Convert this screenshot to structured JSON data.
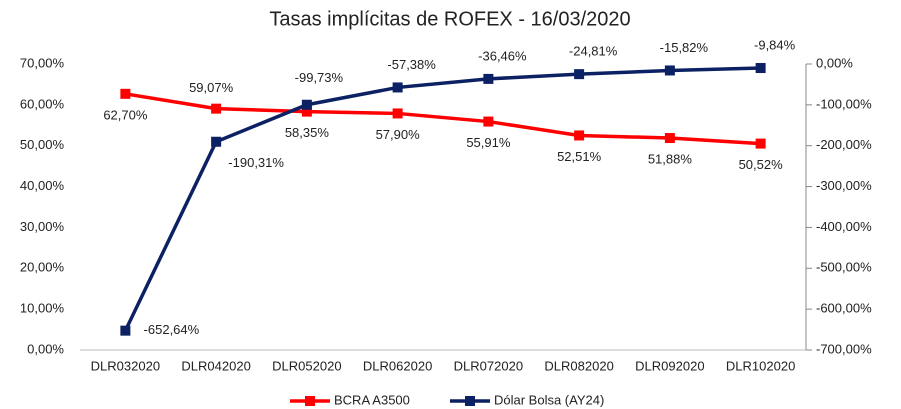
{
  "chart_data": {
    "type": "line",
    "title": "Tasas implícitas de ROFEX - 16/03/2020",
    "categories": [
      "DLR032020",
      "DLR042020",
      "DLR052020",
      "DLR062020",
      "DLR072020",
      "DLR082020",
      "DLR092020",
      "DLR102020"
    ],
    "series": [
      {
        "name": "BCRA A3500",
        "color": "#ff0000",
        "axis": "y",
        "values": [
          62.7,
          59.07,
          58.35,
          57.9,
          55.91,
          52.51,
          51.88,
          50.52
        ],
        "value_labels": [
          "62,70%",
          "59,07%",
          "58,35%",
          "57,90%",
          "55,91%",
          "52,51%",
          "51,88%",
          "50,52%"
        ]
      },
      {
        "name": "Dólar Bolsa (AY24)",
        "color": "#0b2164",
        "axis": "y2",
        "values": [
          -652.64,
          -190.31,
          -99.73,
          -57.38,
          -36.46,
          -24.81,
          -15.82,
          -9.84
        ],
        "value_labels": [
          "-652,64%",
          "-190,31%",
          "-99,73%",
          "-57,38%",
          "-36,46%",
          "-24,81%",
          "-15,82%",
          "-9,84%"
        ]
      }
    ],
    "ylim": [
      0,
      70
    ],
    "yticks": [
      {
        "value": 0,
        "label": "0,00%"
      },
      {
        "value": 10,
        "label": "10,00%"
      },
      {
        "value": 20,
        "label": "20,00%"
      },
      {
        "value": 30,
        "label": "30,00%"
      },
      {
        "value": 40,
        "label": "40,00%"
      },
      {
        "value": 50,
        "label": "50,00%"
      },
      {
        "value": 60,
        "label": "60,00%"
      },
      {
        "value": 70,
        "label": "70,00%"
      }
    ],
    "y2lim": [
      -700,
      0
    ],
    "y2ticks": [
      {
        "value": -700,
        "label": "-700,00%"
      },
      {
        "value": -600,
        "label": "-600,00%"
      },
      {
        "value": -500,
        "label": "-500,00%"
      },
      {
        "value": -400,
        "label": "-400,00%"
      },
      {
        "value": -300,
        "label": "-300,00%"
      },
      {
        "value": -200,
        "label": "-200,00%"
      },
      {
        "value": -100,
        "label": "-100,00%"
      },
      {
        "value": 0,
        "label": "0,00%"
      }
    ],
    "grid": false,
    "legend": "bottom"
  }
}
